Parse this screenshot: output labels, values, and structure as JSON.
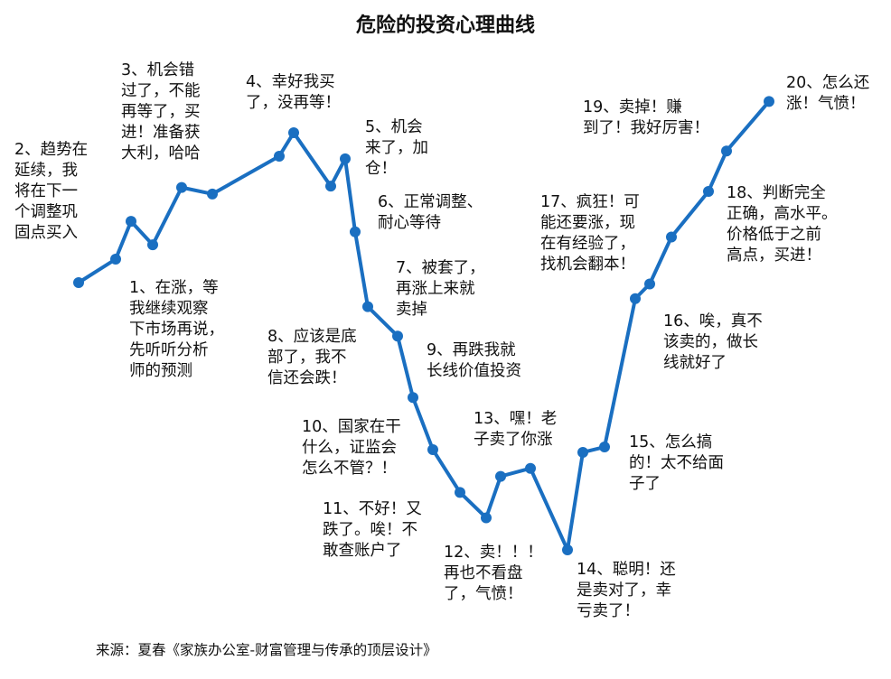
{
  "chart_data": {
    "type": "line",
    "title": "危险的投资心理曲线",
    "xlabel": "",
    "ylabel": "",
    "grid": false,
    "line_color": "#1a6fc1",
    "points": [
      {
        "x": 0,
        "y": 0.0
      },
      {
        "x": 1,
        "y": 0.09
      },
      {
        "x": 2,
        "y": 0.235
      },
      {
        "x": 3,
        "y": 0.145
      },
      {
        "x": 4,
        "y": 0.365
      },
      {
        "x": 5,
        "y": 0.34
      },
      {
        "x": 6,
        "y": 0.485
      },
      {
        "x": 7,
        "y": 0.575
      },
      {
        "x": 8,
        "y": 0.37
      },
      {
        "x": 9,
        "y": 0.475
      },
      {
        "x": 10,
        "y": 0.195
      },
      {
        "x": 11,
        "y": -0.09
      },
      {
        "x": 12,
        "y": -0.2
      },
      {
        "x": 13,
        "y": -0.43
      },
      {
        "x": 14,
        "y": -0.625
      },
      {
        "x": 15,
        "y": -0.785
      },
      {
        "x": 16,
        "y": -0.88
      },
      {
        "x": 17,
        "y": -0.725
      },
      {
        "x": 18,
        "y": -0.695
      },
      {
        "x": 19,
        "y": -1.0
      },
      {
        "x": 20,
        "y": -0.635
      },
      {
        "x": 21,
        "y": -0.615
      },
      {
        "x": 22,
        "y": -0.06
      },
      {
        "x": 23,
        "y": -0.005
      },
      {
        "x": 24,
        "y": 0.175
      },
      {
        "x": 25,
        "y": 0.35
      },
      {
        "x": 26,
        "y": 0.505
      },
      {
        "x": 27,
        "y": 0.695
      }
    ],
    "annotations": [
      {
        "text": "1、在涨，等\n我继续观察\n下市场再说，\n先听听分析\n师的预测"
      },
      {
        "text": "2、趋势在\n延续，我\n将在下一\n个调整巩\n固点买入"
      },
      {
        "text": "3、机会错\n过了，不能\n再等了，买\n进！准备获\n大利，哈哈"
      },
      {
        "text": "4、幸好我买\n了，没再等！"
      },
      {
        "text": "5、机会\n来了，加\n仓！"
      },
      {
        "text": "6、正常调整、\n耐心等待"
      },
      {
        "text": "7、被套了，\n再涨上来就\n卖掉"
      },
      {
        "text": "8、应该是底\n部了，我不\n信还会跌！"
      },
      {
        "text": "9、再跌我就\n长线价值投资"
      },
      {
        "text": "10、国家在干\n什么，证监会\n怎么不管？！"
      },
      {
        "text": "11、不好！又\n跌了。唉！不\n敢查账户了"
      },
      {
        "text": "12、卖！！！\n再也不看盘\n了，气愤！"
      },
      {
        "text": "13、嘿！老\n子卖了你涨"
      },
      {
        "text": "14、聪明！还\n是卖对了，幸\n亏卖了！"
      },
      {
        "text": "15、怎么搞\n的！太不给面\n子了"
      },
      {
        "text": "16、唉，真不\n该卖的，做长\n线就好了"
      },
      {
        "text": "17、疯狂！可\n能还要涨，现\n在有经验了，\n找机会翻本！"
      },
      {
        "text": "18、判断完全\n正确，高水平。\n价格低于之前\n高点，买进！"
      },
      {
        "text": "19、卖掉！赚\n到了！我好厉害！"
      },
      {
        "text": "20、怎么还\n涨！气愤！"
      }
    ]
  },
  "source_text": "来源：夏春《家族办公室-财富管理与传承的顶层设计》"
}
